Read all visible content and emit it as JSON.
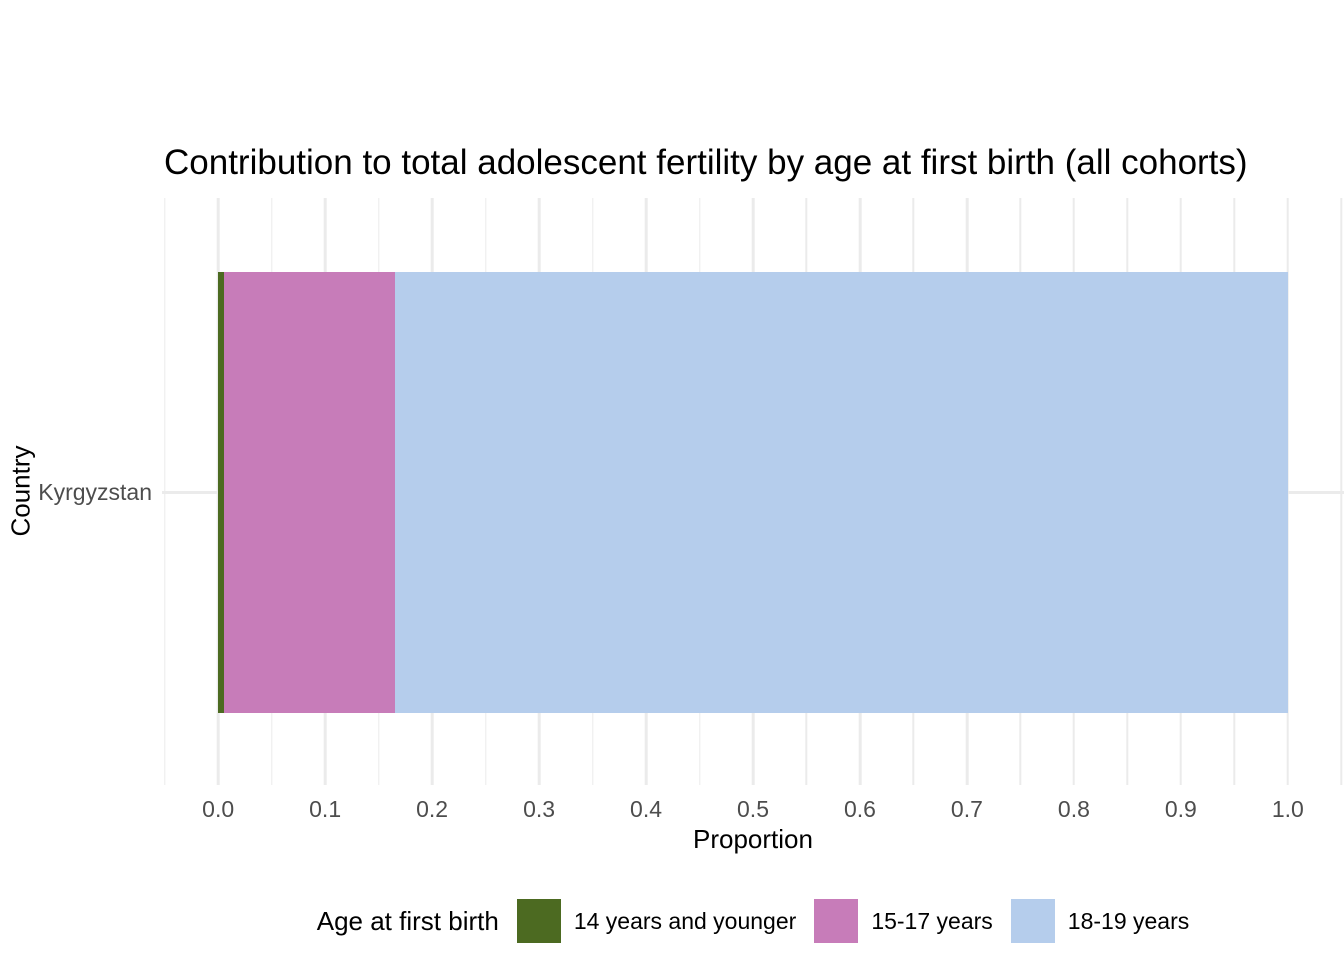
{
  "title": "Contribution to total adolescent fertility by age at first birth (all cohorts)",
  "x_axis": {
    "label": "Proportion",
    "ticks": [
      "0.0",
      "0.1",
      "0.2",
      "0.3",
      "0.4",
      "0.5",
      "0.6",
      "0.7",
      "0.8",
      "0.9",
      "1.0"
    ]
  },
  "y_axis": {
    "label": "Country",
    "tick": "Kyrgyzstan"
  },
  "legend": {
    "title": "Age at first birth",
    "items": [
      {
        "label": "14 years and younger",
        "color": "#4c6a21"
      },
      {
        "label": "15-17 years",
        "color": "#c77cb9"
      },
      {
        "label": "18-19 years",
        "color": "#b5cdec"
      }
    ]
  },
  "colors": {
    "background": "#ffffff",
    "grid": "#ebebeb",
    "tick_text": "#4d4d4d",
    "title_text": "#000000"
  },
  "chart_data": {
    "type": "bar",
    "orientation": "horizontal",
    "stacked": true,
    "title": "Contribution to total adolescent fertility by age at first birth (all cohorts)",
    "xlabel": "Proportion",
    "ylabel": "Country",
    "categories": [
      "Kyrgyzstan"
    ],
    "series": [
      {
        "name": "14 years and younger",
        "color": "#4c6a21",
        "values": [
          0.005
        ]
      },
      {
        "name": "15-17 years",
        "color": "#c77cb9",
        "values": [
          0.16
        ]
      },
      {
        "name": "18-19 years",
        "color": "#b5cdec",
        "values": [
          0.835
        ]
      }
    ],
    "xlim": [
      -0.0525,
      1.0525
    ],
    "x_major_ticks": [
      0.0,
      0.1,
      0.2,
      0.3,
      0.4,
      0.5,
      0.6,
      0.7,
      0.8,
      0.9,
      1.0
    ],
    "x_minor_step": 0.05,
    "grid": true,
    "legend_position": "bottom"
  }
}
